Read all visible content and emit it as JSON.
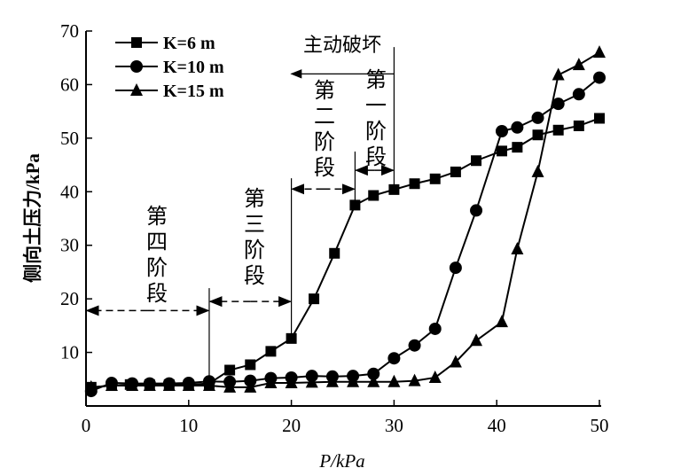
{
  "chart_data": {
    "type": "line",
    "xlabel": "P/kPa",
    "ylabel": "侧向土压力/kPa",
    "xlim": [
      0,
      50
    ],
    "ylim": [
      0,
      70
    ],
    "xticks": [
      0,
      10,
      20,
      30,
      40,
      50
    ],
    "yticks": [
      10,
      20,
      30,
      40,
      50,
      60,
      70
    ],
    "legend_position": "top-left",
    "grid": false,
    "series": [
      {
        "name": "K=6 m",
        "marker": "square",
        "x": [
          0.5,
          2.5,
          4.3,
          6.2,
          8.1,
          10,
          12,
          14,
          16,
          18,
          20,
          22.2,
          24.2,
          26.2,
          28,
          30,
          32,
          34,
          36,
          38,
          40.5,
          42,
          44,
          46,
          48,
          50
        ],
        "y": [
          3.5,
          3.8,
          4.0,
          4.0,
          4.0,
          4.0,
          4.2,
          6.7,
          7.7,
          10.2,
          12.6,
          20,
          28.5,
          37.5,
          39.3,
          40.4,
          41.5,
          42.4,
          43.7,
          45.8,
          47.6,
          48.3,
          50.6,
          51.5,
          52.3,
          53.7
        ]
      },
      {
        "name": "K=10 m",
        "marker": "circle",
        "x": [
          0.5,
          2.5,
          4.5,
          6.2,
          8.1,
          10,
          12,
          14,
          16,
          18,
          20,
          22,
          24,
          26,
          28,
          30,
          32,
          34,
          36,
          38,
          40.5,
          42,
          44,
          46,
          48,
          50
        ],
        "y": [
          2.8,
          4.3,
          4.2,
          4.2,
          4.2,
          4.3,
          4.6,
          4.5,
          4.7,
          5.2,
          5.3,
          5.6,
          5.5,
          5.6,
          6.0,
          8.9,
          11.3,
          14.4,
          25.8,
          36.5,
          51.3,
          52.0,
          53.8,
          56.4,
          58.2,
          61.3
        ]
      },
      {
        "name": "K=15 m",
        "marker": "triangle",
        "x": [
          0.5,
          2.5,
          4.5,
          6.2,
          8.1,
          10,
          12,
          14,
          16,
          18,
          20,
          22,
          24,
          26,
          28,
          30,
          32,
          34,
          36,
          38,
          40.5,
          42,
          44,
          46,
          48,
          50
        ],
        "y": [
          3.5,
          3.8,
          3.8,
          3.8,
          3.8,
          3.8,
          3.8,
          3.5,
          3.5,
          4.3,
          4.3,
          4.4,
          4.5,
          4.5,
          4.5,
          4.5,
          4.7,
          5.3,
          8.2,
          12.2,
          15.7,
          29.3,
          43.7,
          61.8,
          63.7,
          66.0
        ]
      }
    ],
    "annotations": {
      "active_failure": "主动破坏",
      "stage1": [
        "第",
        "一",
        "阶",
        "段"
      ],
      "stage2": [
        "第",
        "二",
        "阶",
        "段"
      ],
      "stage3": [
        "第",
        "三",
        "阶",
        "段"
      ],
      "stage4": [
        "第",
        "四",
        "阶",
        "段"
      ]
    }
  }
}
